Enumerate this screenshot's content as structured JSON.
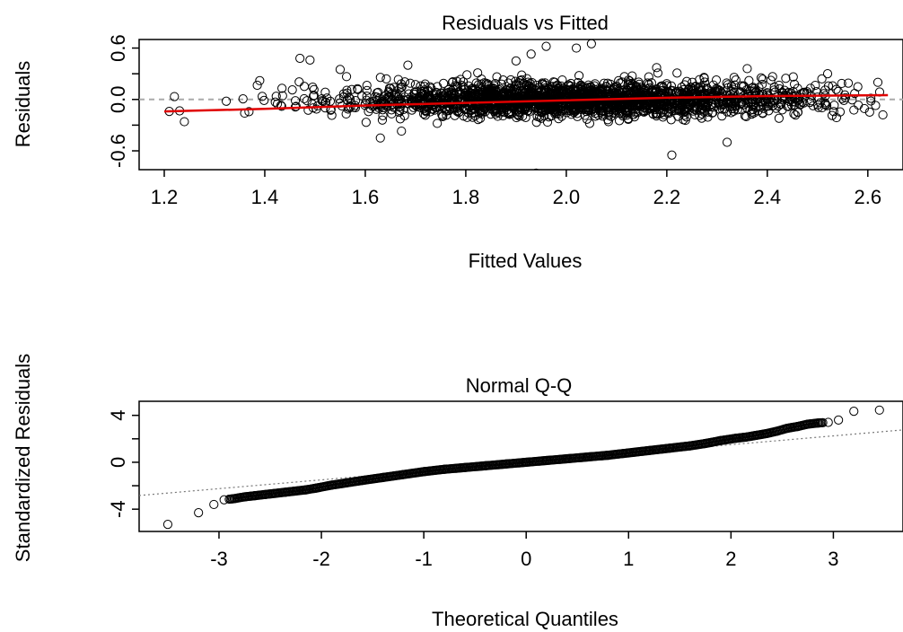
{
  "chart_data": [
    {
      "type": "scatter",
      "title": "Residuals vs Fitted",
      "xlabel": "Fitted Values",
      "ylabel": "Residuals",
      "xlim": [
        1.15,
        2.67
      ],
      "ylim": [
        -0.82,
        0.7
      ],
      "xticks": [
        1.2,
        1.4,
        1.6,
        1.8,
        2.0,
        2.2,
        2.4,
        2.6
      ],
      "xtick_labels": [
        "1.2",
        "1.4",
        "1.6",
        "1.8",
        "2.0",
        "2.2",
        "2.4",
        "2.6"
      ],
      "yticks": [
        -0.6,
        -0.3,
        0.0,
        0.3,
        0.6
      ],
      "ytick_labels": [
        "-0.6",
        "",
        "0.0",
        "",
        "0.6"
      ],
      "reference_line": {
        "y": 0.0,
        "style": "dashed",
        "color": "#aaaaaa"
      },
      "smooth_line": {
        "color": "#e00000",
        "x": [
          1.2,
          1.4,
          1.6,
          1.8,
          2.0,
          2.2,
          2.4,
          2.64
        ],
        "y": [
          -0.14,
          -0.11,
          -0.07,
          -0.04,
          -0.01,
          0.02,
          0.04,
          0.05
        ]
      },
      "marker": "open-circle",
      "grid": false,
      "highlighted_points": {
        "x": [
          1.21,
          1.24,
          1.36,
          1.39,
          1.47,
          1.49,
          1.55,
          1.63,
          1.9,
          1.93,
          1.94,
          1.96,
          2.02,
          2.05,
          2.21,
          2.32,
          2.36,
          2.52,
          2.62,
          2.63
        ],
        "y": [
          -0.14,
          -0.26,
          -0.16,
          0.22,
          0.48,
          0.46,
          0.35,
          -0.45,
          0.45,
          0.53,
          -0.86,
          0.62,
          0.6,
          0.65,
          -0.65,
          -0.5,
          0.36,
          0.3,
          0.2,
          -0.18
        ]
      }
    },
    {
      "type": "scatter",
      "title": "Normal Q-Q",
      "xlabel": "Theoretical Quantiles",
      "ylabel": "Standardized Residuals",
      "xlim": [
        -3.78,
        3.68
      ],
      "ylim": [
        -5.9,
        5.2
      ],
      "xticks": [
        -3,
        -2,
        -1,
        0,
        1,
        2,
        3
      ],
      "xtick_labels": [
        "-3",
        "-2",
        "-1",
        "0",
        "1",
        "2",
        "3"
      ],
      "yticks": [
        -4,
        -2,
        0,
        2,
        4
      ],
      "ytick_labels": [
        "-4",
        "",
        "0",
        "",
        "4"
      ],
      "reference_line": {
        "slope": 0.75,
        "intercept": 0.0,
        "style": "dotted",
        "color": "#777777"
      },
      "marker": "open-circle",
      "grid": false,
      "qq_points": {
        "x": [
          -3.5,
          -3.2,
          -3.05,
          -2.95,
          -2.85,
          -2.75,
          -2.65,
          -2.55,
          -2.45,
          -2.35,
          -2.25,
          -2.15,
          -2.05,
          -1.9,
          -1.75,
          -1.6,
          -1.4,
          -1.2,
          -1.0,
          -0.8,
          -0.6,
          -0.4,
          -0.2,
          0.0,
          0.2,
          0.4,
          0.6,
          0.8,
          1.0,
          1.2,
          1.4,
          1.6,
          1.75,
          1.9,
          2.05,
          2.15,
          2.25,
          2.35,
          2.45,
          2.55,
          2.65,
          2.75,
          2.85,
          2.95,
          3.05,
          3.2,
          3.45
        ],
        "y": [
          -5.3,
          -4.3,
          -3.6,
          -3.2,
          -3.1,
          -2.95,
          -2.85,
          -2.75,
          -2.65,
          -2.55,
          -2.45,
          -2.35,
          -2.2,
          -1.95,
          -1.75,
          -1.55,
          -1.3,
          -1.05,
          -0.8,
          -0.6,
          -0.45,
          -0.3,
          -0.15,
          0.0,
          0.15,
          0.3,
          0.45,
          0.6,
          0.8,
          1.0,
          1.2,
          1.4,
          1.6,
          1.85,
          2.05,
          2.15,
          2.3,
          2.45,
          2.65,
          2.9,
          3.05,
          3.25,
          3.35,
          3.4,
          3.6,
          4.35,
          4.45
        ]
      }
    }
  ]
}
